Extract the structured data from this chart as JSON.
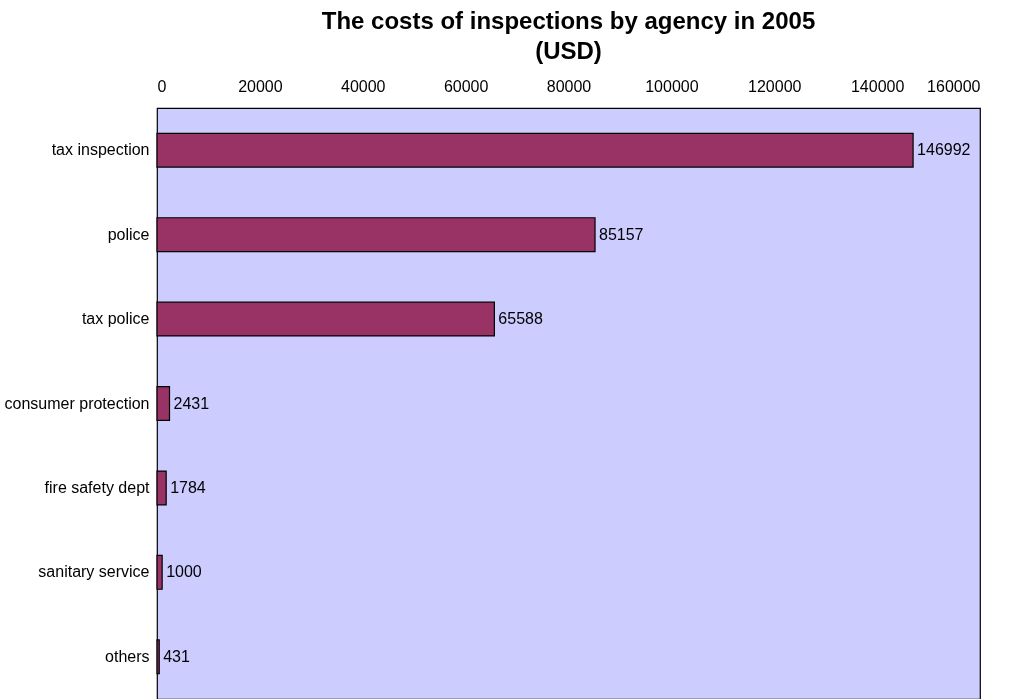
{
  "chart_data": {
    "type": "bar",
    "orientation": "horizontal",
    "title": "The costs of inspections by agency in 2005 (USD)",
    "categories": [
      "tax inspection",
      "police",
      "tax police",
      "consumer protection",
      "fire safety dept",
      "sanitary service",
      "others"
    ],
    "values": [
      146992,
      85157,
      65588,
      2431,
      1784,
      1000,
      431
    ],
    "color": "#993366",
    "xlim": [
      0,
      160000
    ],
    "xticks": [
      0,
      20000,
      40000,
      60000,
      80000,
      100000,
      120000,
      140000,
      160000
    ],
    "grid": false,
    "data_labels": true
  }
}
